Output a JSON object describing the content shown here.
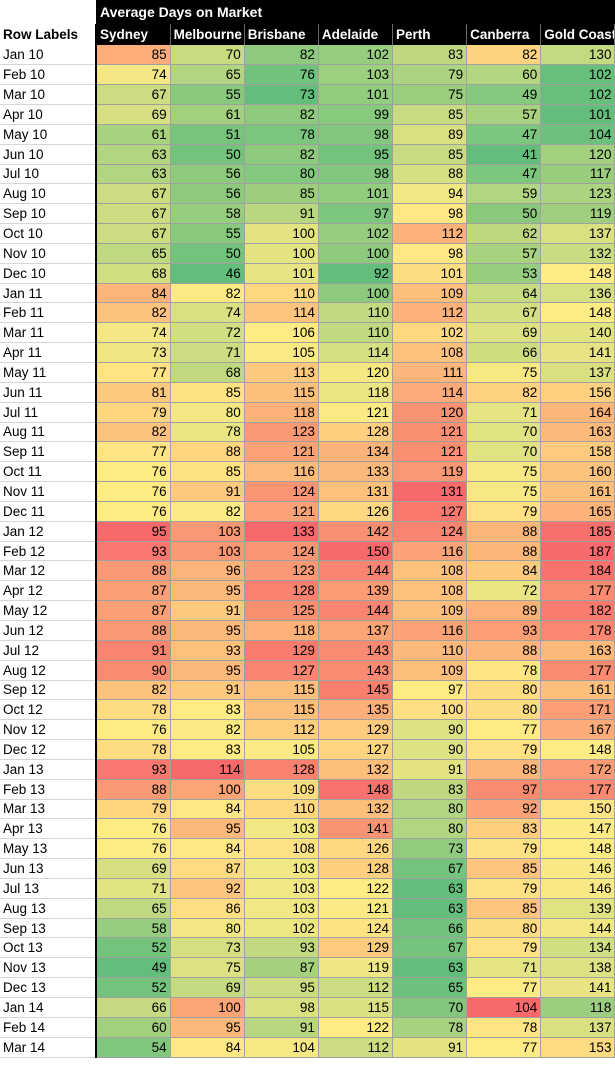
{
  "title": "Average Days on Market",
  "row_labels_header": "Row Labels",
  "columns": [
    "Sydney",
    "Melbourne",
    "Brisbane",
    "Adelaide",
    "Perth",
    "Canberra",
    "Gold Coast"
  ],
  "color_scale": {
    "low": "#63be7b",
    "mid": "#ffeb84",
    "high": "#f8696b"
  },
  "rows": [
    {
      "label": "Jan 10",
      "values": [
        85,
        70,
        82,
        102,
        83,
        82,
        130
      ]
    },
    {
      "label": "Feb 10",
      "values": [
        74,
        65,
        76,
        103,
        79,
        60,
        102
      ]
    },
    {
      "label": "Mar 10",
      "values": [
        67,
        55,
        73,
        101,
        75,
        49,
        102
      ]
    },
    {
      "label": "Apr 10",
      "values": [
        69,
        61,
        82,
        99,
        85,
        57,
        101
      ]
    },
    {
      "label": "May 10",
      "values": [
        61,
        51,
        78,
        98,
        89,
        47,
        104
      ]
    },
    {
      "label": "Jun 10",
      "values": [
        63,
        50,
        82,
        95,
        85,
        41,
        120
      ]
    },
    {
      "label": "Jul 10",
      "values": [
        63,
        56,
        80,
        98,
        88,
        47,
        117
      ]
    },
    {
      "label": "Aug 10",
      "values": [
        67,
        56,
        85,
        101,
        94,
        59,
        123
      ]
    },
    {
      "label": "Sep 10",
      "values": [
        67,
        58,
        91,
        97,
        98,
        50,
        119
      ]
    },
    {
      "label": "Oct 10",
      "values": [
        67,
        55,
        100,
        102,
        112,
        62,
        137
      ]
    },
    {
      "label": "Nov 10",
      "values": [
        65,
        50,
        100,
        100,
        98,
        57,
        132
      ]
    },
    {
      "label": "Dec 10",
      "values": [
        68,
        46,
        101,
        92,
        101,
        53,
        148
      ]
    },
    {
      "label": "Jan 11",
      "values": [
        84,
        82,
        110,
        100,
        109,
        64,
        136
      ]
    },
    {
      "label": "Feb 11",
      "values": [
        82,
        74,
        114,
        110,
        112,
        67,
        148
      ]
    },
    {
      "label": "Mar 11",
      "values": [
        74,
        72,
        106,
        110,
        102,
        69,
        140
      ]
    },
    {
      "label": "Apr 11",
      "values": [
        73,
        71,
        105,
        114,
        108,
        66,
        141
      ]
    },
    {
      "label": "May 11",
      "values": [
        77,
        68,
        113,
        120,
        111,
        75,
        137
      ]
    },
    {
      "label": "Jun 11",
      "values": [
        81,
        85,
        115,
        118,
        114,
        82,
        156
      ]
    },
    {
      "label": "Jul 11",
      "values": [
        79,
        80,
        118,
        121,
        120,
        71,
        164
      ]
    },
    {
      "label": "Aug 11",
      "values": [
        82,
        78,
        123,
        128,
        121,
        70,
        163
      ]
    },
    {
      "label": "Sep 11",
      "values": [
        77,
        88,
        121,
        134,
        121,
        70,
        158
      ]
    },
    {
      "label": "Oct 11",
      "values": [
        76,
        85,
        116,
        133,
        119,
        75,
        160
      ]
    },
    {
      "label": "Nov 11",
      "values": [
        76,
        91,
        124,
        131,
        131,
        75,
        161
      ]
    },
    {
      "label": "Dec 11",
      "values": [
        76,
        82,
        121,
        126,
        127,
        79,
        165
      ]
    },
    {
      "label": "Jan 12",
      "values": [
        95,
        103,
        133,
        142,
        124,
        88,
        185
      ]
    },
    {
      "label": "Feb 12",
      "values": [
        93,
        103,
        124,
        150,
        116,
        88,
        187
      ]
    },
    {
      "label": "Mar 12",
      "values": [
        88,
        96,
        123,
        144,
        108,
        84,
        184
      ]
    },
    {
      "label": "Apr 12",
      "values": [
        87,
        95,
        128,
        139,
        108,
        72,
        177
      ]
    },
    {
      "label": "May 12",
      "values": [
        87,
        91,
        125,
        144,
        109,
        89,
        182
      ]
    },
    {
      "label": "Jun 12",
      "values": [
        88,
        95,
        118,
        137,
        116,
        93,
        178
      ]
    },
    {
      "label": "Jul 12",
      "values": [
        91,
        93,
        129,
        143,
        110,
        88,
        163
      ]
    },
    {
      "label": "Aug 12",
      "values": [
        90,
        95,
        127,
        143,
        109,
        78,
        177
      ]
    },
    {
      "label": "Sep 12",
      "values": [
        82,
        91,
        115,
        145,
        97,
        80,
        161
      ]
    },
    {
      "label": "Oct 12",
      "values": [
        78,
        83,
        115,
        135,
        100,
        80,
        171
      ]
    },
    {
      "label": "Nov 12",
      "values": [
        76,
        82,
        112,
        129,
        90,
        77,
        167
      ]
    },
    {
      "label": "Dec 12",
      "values": [
        78,
        83,
        105,
        127,
        90,
        79,
        148
      ]
    },
    {
      "label": "Jan 13",
      "values": [
        93,
        114,
        128,
        132,
        91,
        88,
        172
      ]
    },
    {
      "label": "Feb 13",
      "values": [
        88,
        100,
        109,
        148,
        83,
        97,
        177
      ]
    },
    {
      "label": "Mar 13",
      "values": [
        79,
        84,
        110,
        132,
        80,
        92,
        150
      ]
    },
    {
      "label": "Apr 13",
      "values": [
        76,
        95,
        103,
        141,
        80,
        83,
        147
      ]
    },
    {
      "label": "May 13",
      "values": [
        76,
        84,
        108,
        126,
        73,
        79,
        148
      ]
    },
    {
      "label": "Jun 13",
      "values": [
        69,
        87,
        103,
        128,
        67,
        85,
        146
      ]
    },
    {
      "label": "Jul 13",
      "values": [
        71,
        92,
        103,
        122,
        63,
        79,
        146
      ]
    },
    {
      "label": "Aug 13",
      "values": [
        65,
        86,
        103,
        121,
        63,
        85,
        139
      ]
    },
    {
      "label": "Sep 13",
      "values": [
        58,
        80,
        102,
        124,
        66,
        80,
        144
      ]
    },
    {
      "label": "Oct 13",
      "values": [
        52,
        73,
        93,
        129,
        67,
        79,
        134
      ]
    },
    {
      "label": "Nov 13",
      "values": [
        49,
        75,
        87,
        119,
        63,
        71,
        138
      ]
    },
    {
      "label": "Dec 13",
      "values": [
        52,
        69,
        95,
        112,
        65,
        77,
        141
      ]
    },
    {
      "label": "Jan 14",
      "values": [
        66,
        100,
        98,
        115,
        70,
        104,
        118
      ]
    },
    {
      "label": "Feb 14",
      "values": [
        60,
        95,
        91,
        122,
        78,
        78,
        137
      ]
    },
    {
      "label": "Mar 14",
      "values": [
        54,
        84,
        104,
        112,
        91,
        77,
        153
      ]
    }
  ]
}
